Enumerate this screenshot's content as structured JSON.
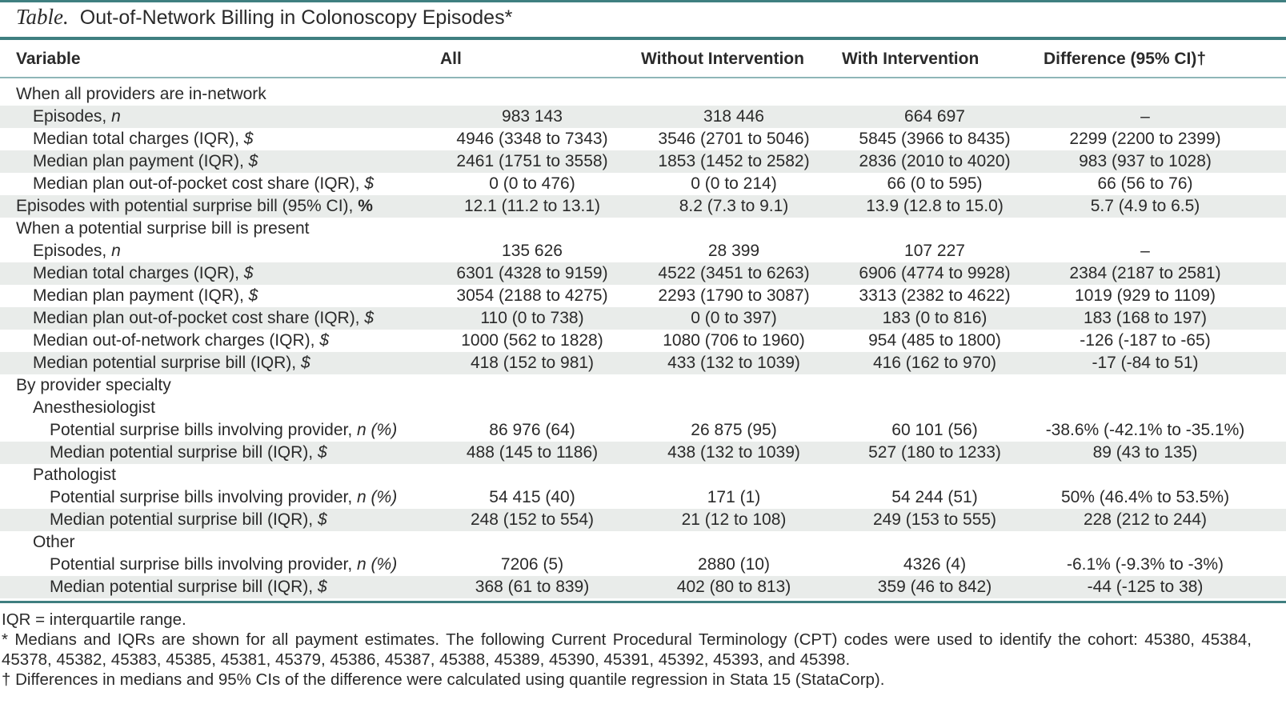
{
  "title": {
    "label": "Table.",
    "text": "Out-of-Network Billing in Colonoscopy Episodes*"
  },
  "header": {
    "variable": "Variable",
    "all": "All",
    "without": "Without Intervention",
    "with": "With Intervention",
    "difference": "Difference (95% CI)†"
  },
  "rows": [
    {
      "level": 0,
      "label": "When all providers are in-network",
      "unit": "",
      "shaded": false,
      "all": "",
      "without": "",
      "with": "",
      "difference": ""
    },
    {
      "level": 1,
      "label": "Episodes, ",
      "unit": "n",
      "shaded": true,
      "all": "983 143",
      "without": "318 446",
      "with": "664 697",
      "difference": "–"
    },
    {
      "level": 1,
      "label": "Median total charges (IQR), ",
      "unit": "$",
      "shaded": false,
      "all": "4946 (3348 to 7343)",
      "without": "3546 (2701 to 5046)",
      "with": "5845 (3966 to 8435)",
      "difference": "2299 (2200 to 2399)"
    },
    {
      "level": 1,
      "label": "Median plan payment (IQR), ",
      "unit": "$",
      "shaded": true,
      "all": "2461 (1751 to 3558)",
      "without": "1853 (1452 to 2582)",
      "with": "2836 (2010 to 4020)",
      "difference": "983 (937 to 1028)"
    },
    {
      "level": 1,
      "label": "Median plan out-of-pocket cost share (IQR), ",
      "unit": "$",
      "shaded": false,
      "all": "0 (0 to 476)",
      "without": "0 (0 to 214)",
      "with": "66 (0 to 595)",
      "difference": "66 (56 to 76)"
    },
    {
      "level": 0,
      "label": "Episodes with potential surprise bill (95% CI), ",
      "unit": "%",
      "shaded": true,
      "all": "12.1 (11.2 to 13.1)",
      "without": "8.2 (7.3 to 9.1)",
      "with": "13.9 (12.8 to 15.0)",
      "difference": "5.7 (4.9 to 6.5)"
    },
    {
      "level": 0,
      "label": "When a potential surprise bill is present",
      "unit": "",
      "shaded": false,
      "all": "",
      "without": "",
      "with": "",
      "difference": ""
    },
    {
      "level": 1,
      "label": "Episodes, ",
      "unit": "n",
      "shaded": false,
      "all": "135 626",
      "without": "28 399",
      "with": "107 227",
      "difference": "–"
    },
    {
      "level": 1,
      "label": "Median total charges (IQR), ",
      "unit": "$",
      "shaded": true,
      "all": "6301 (4328 to 9159)",
      "without": "4522 (3451 to 6263)",
      "with": "6906 (4774 to 9928)",
      "difference": "2384 (2187 to 2581)"
    },
    {
      "level": 1,
      "label": "Median plan payment (IQR), ",
      "unit": "$",
      "shaded": false,
      "all": "3054 (2188 to 4275)",
      "without": "2293 (1790 to 3087)",
      "with": "3313 (2382 to 4622)",
      "difference": "1019 (929 to 1109)"
    },
    {
      "level": 1,
      "label": "Median plan out-of-pocket cost share (IQR), ",
      "unit": "$",
      "shaded": true,
      "all": "110 (0 to 738)",
      "without": "0 (0 to 397)",
      "with": "183 (0 to 816)",
      "difference": "183 (168 to 197)"
    },
    {
      "level": 1,
      "label": "Median out-of-network charges (IQR), ",
      "unit": "$",
      "shaded": false,
      "all": "1000 (562 to 1828)",
      "without": "1080 (706 to 1960)",
      "with": "954 (485 to 1800)",
      "difference": "-126 (-187 to -65)"
    },
    {
      "level": 1,
      "label": "Median potential surprise bill (IQR), ",
      "unit": "$",
      "shaded": true,
      "all": "418 (152 to 981)",
      "without": "433 (132 to 1039)",
      "with": "416 (162 to 970)",
      "difference": "-17 (-84 to 51)"
    },
    {
      "level": 0,
      "label": "By provider specialty",
      "unit": "",
      "shaded": false,
      "all": "",
      "without": "",
      "with": "",
      "difference": ""
    },
    {
      "level": 1,
      "label": "Anesthesiologist",
      "unit": "",
      "shaded": false,
      "all": "",
      "without": "",
      "with": "",
      "difference": ""
    },
    {
      "level": 2,
      "label": "Potential surprise bills involving provider, ",
      "unit": "n (%)",
      "shaded": false,
      "all": "86 976 (64)",
      "without": "26 875 (95)",
      "with": "60 101 (56)",
      "difference": "-38.6% (-42.1% to -35.1%)"
    },
    {
      "level": 2,
      "label": "Median potential surprise bill (IQR), ",
      "unit": "$",
      "shaded": true,
      "all": "488 (145 to 1186)",
      "without": "438 (132 to 1039)",
      "with": "527 (180 to 1233)",
      "difference": "89 (43 to 135)"
    },
    {
      "level": 1,
      "label": "Pathologist",
      "unit": "",
      "shaded": false,
      "all": "",
      "without": "",
      "with": "",
      "difference": ""
    },
    {
      "level": 2,
      "label": "Potential surprise bills involving provider, ",
      "unit": "n (%)",
      "shaded": false,
      "all": "54 415 (40)",
      "without": "171 (1)",
      "with": "54 244 (51)",
      "difference": "50% (46.4% to 53.5%)"
    },
    {
      "level": 2,
      "label": "Median potential surprise bill (IQR), ",
      "unit": "$",
      "shaded": true,
      "all": "248 (152 to 554)",
      "without": "21 (12 to 108)",
      "with": "249 (153 to 555)",
      "difference": "228 (212 to 244)"
    },
    {
      "level": 1,
      "label": "Other",
      "unit": "",
      "shaded": false,
      "all": "",
      "without": "",
      "with": "",
      "difference": ""
    },
    {
      "level": 2,
      "label": "Potential surprise bills involving provider, ",
      "unit": "n (%)",
      "shaded": false,
      "all": "7206 (5)",
      "without": "2880 (10)",
      "with": "4326 (4)",
      "difference": "-6.1% (-9.3% to -3%)"
    },
    {
      "level": 2,
      "label": "Median potential surprise bill (IQR), ",
      "unit": "$",
      "shaded": true,
      "all": "368 (61 to 839)",
      "without": "402 (80 to 813)",
      "with": "359 (46 to 842)",
      "difference": "-44 (-125 to 38)"
    }
  ],
  "footnotes": [
    "IQR = interquartile range.",
    "* Medians and IQRs are shown for all payment estimates. The following Current Procedural Terminology (CPT) codes were used to identify the cohort: 45380, 45384, 45378, 45382, 45383, 45385, 45381, 45379, 45386, 45387, 45388, 45389, 45390, 45391, 45392, 45393, and 45398.",
    "† Differences in medians and 95% CIs of the difference were calculated using quantile regression in Stata 15 (StataCorp)."
  ]
}
